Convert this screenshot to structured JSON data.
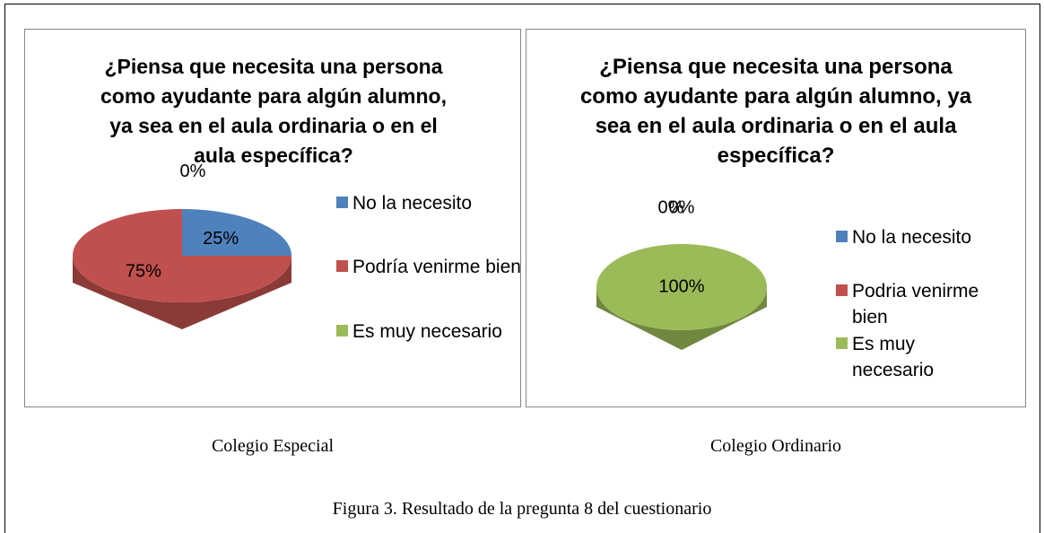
{
  "chart_data": [
    {
      "type": "pie",
      "title": "¿Piensa que necesita una persona como ayudante para algún alumno, ya sea en el aula ordinaria o en el aula específica?",
      "categories": [
        "No la necesito",
        "Podría venirme bien",
        "Es muy necesario"
      ],
      "values": [
        25,
        75,
        0
      ],
      "value_labels": [
        "25%",
        "75%",
        "0%"
      ],
      "colors": [
        "#4f81bd",
        "#c0504d",
        "#9bbb59"
      ],
      "legend": "right",
      "caption": "Colegio Especial"
    },
    {
      "type": "pie",
      "title": "¿Piensa que necesita una persona como ayudante para algún alumno, ya sea en el aula ordinaria o en el aula específica?",
      "categories": [
        "No la necesito",
        "Podria venirme bien",
        "Es muy necesario"
      ],
      "values": [
        0,
        0,
        100
      ],
      "value_labels": [
        "0%",
        "0%",
        "100%"
      ],
      "colors": [
        "#4f81bd",
        "#c0504d",
        "#9bbb59"
      ],
      "legend": "right",
      "caption": "Colegio Ordinario"
    }
  ],
  "figure_caption": "Figura 3. Resultado de la pregunta 8 del cuestionario"
}
